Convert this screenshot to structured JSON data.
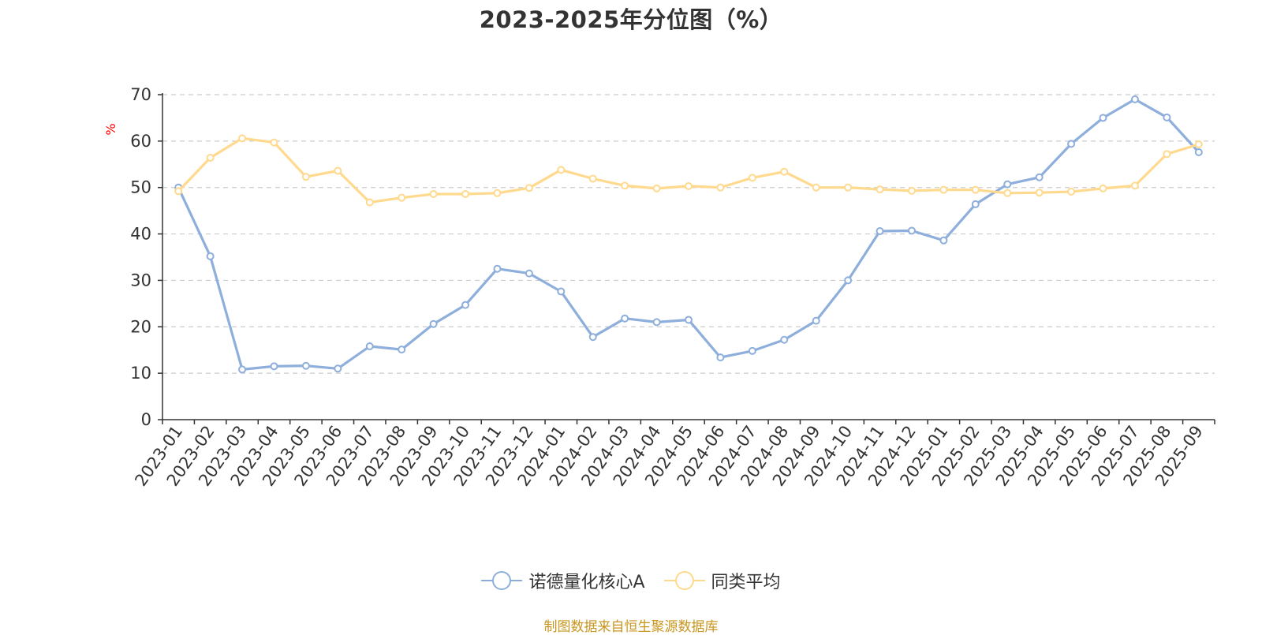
{
  "chart_data": {
    "type": "line",
    "title": "2023-2025年分位图（%）",
    "ylabel": "%",
    "xlabel": "",
    "ylim": [
      0,
      70
    ],
    "yticks": [
      0,
      10,
      20,
      30,
      40,
      50,
      60,
      70
    ],
    "grid": true,
    "legend_position": "bottom-center",
    "categories": [
      "2023-01",
      "2023-02",
      "2023-03",
      "2023-04",
      "2023-05",
      "2023-06",
      "2023-07",
      "2023-08",
      "2023-09",
      "2023-10",
      "2023-11",
      "2023-12",
      "2024-01",
      "2024-02",
      "2024-03",
      "2024-04",
      "2024-05",
      "2024-06",
      "2024-07",
      "2024-08",
      "2024-09",
      "2024-10",
      "2024-11",
      "2024-12",
      "2025-01",
      "2025-02",
      "2025-03",
      "2025-04",
      "2025-05",
      "2025-06",
      "2025-07",
      "2025-08",
      "2025-09"
    ],
    "series": [
      {
        "name": "诺德量化核心A",
        "color": "#8eaedb",
        "values": [
          50.0,
          35.2,
          10.8,
          11.5,
          11.6,
          11.0,
          15.8,
          15.1,
          20.6,
          24.7,
          32.5,
          31.5,
          27.6,
          17.8,
          21.8,
          21.0,
          21.5,
          13.4,
          14.8,
          17.2,
          21.3,
          30.0,
          40.6,
          40.7,
          38.6,
          46.4,
          50.7,
          52.2,
          59.4,
          65.0,
          69.0,
          65.1,
          57.6
        ]
      },
      {
        "name": "同类平均",
        "color": "#ffd98e",
        "values": [
          49.2,
          56.4,
          60.6,
          59.7,
          52.3,
          53.6,
          46.8,
          47.8,
          48.6,
          48.6,
          48.8,
          49.9,
          53.8,
          51.9,
          50.4,
          49.8,
          50.3,
          50.0,
          52.1,
          53.4,
          50.0,
          50.0,
          49.6,
          49.3,
          49.5,
          49.5,
          48.8,
          48.9,
          49.1,
          49.8,
          50.4,
          57.2,
          59.3
        ]
      }
    ]
  },
  "footer": {
    "source": "制图数据来自恒生聚源数据库"
  }
}
